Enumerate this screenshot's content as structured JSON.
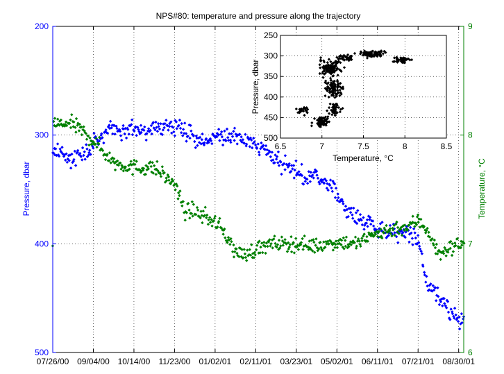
{
  "chart_data": [
    {
      "type": "scatter",
      "title": "NPS#80: temperature and pressure along the trajectory",
      "ylabel_left": "Pressure, dbar",
      "ylabel_right": "Temperature, °C",
      "left_axis": {
        "range": [
          500,
          200
        ],
        "reversed": true,
        "ticks": [
          "200",
          "300",
          "400",
          "500"
        ],
        "color": "#0000ff"
      },
      "right_axis": {
        "range": [
          6,
          9
        ],
        "ticks": [
          "6",
          "7",
          "8",
          "9"
        ],
        "color": "#008000"
      },
      "x_ticks": [
        "07/26/00",
        "09/04/00",
        "10/14/00",
        "11/23/00",
        "01/02/01",
        "02/11/01",
        "03/23/01",
        "05/02/01",
        "06/11/01",
        "07/21/01",
        "08/30/01"
      ],
      "x_range_days": [
        0,
        405
      ],
      "x_tick_days": [
        0,
        40,
        80,
        120,
        160,
        200,
        240,
        280,
        320,
        360,
        400
      ],
      "grid": "dotted",
      "series": [
        {
          "axis": "left",
          "color": "#0000ff",
          "keyframes": [
            [
              0,
              312
            ],
            [
              10,
              318
            ],
            [
              20,
              322
            ],
            [
              30,
              318
            ],
            [
              40,
              308
            ],
            [
              50,
              298
            ],
            [
              60,
              296
            ],
            [
              70,
              296
            ],
            [
              80,
              294
            ],
            [
              90,
              296
            ],
            [
              100,
              292
            ],
            [
              110,
              293
            ],
            [
              120,
              295
            ],
            [
              130,
              296
            ],
            [
              140,
              303
            ],
            [
              150,
              306
            ],
            [
              160,
              302
            ],
            [
              170,
              300
            ],
            [
              180,
              303
            ],
            [
              190,
              305
            ],
            [
              200,
              310
            ],
            [
              210,
              314
            ],
            [
              220,
              322
            ],
            [
              230,
              328
            ],
            [
              240,
              334
            ],
            [
              250,
              340
            ],
            [
              260,
              338
            ],
            [
              270,
              345
            ],
            [
              280,
              352
            ],
            [
              290,
              370
            ],
            [
              300,
              378
            ],
            [
              310,
              380
            ],
            [
              320,
              386
            ],
            [
              330,
              388
            ],
            [
              340,
              390
            ],
            [
              350,
              390
            ],
            [
              360,
              395
            ],
            [
              365,
              420
            ],
            [
              370,
              440
            ],
            [
              380,
              445
            ],
            [
              390,
              460
            ],
            [
              400,
              468
            ],
            [
              405,
              470
            ]
          ],
          "spread": 8
        },
        {
          "axis": "right",
          "color": "#008000",
          "keyframes": [
            [
              0,
              8.1
            ],
            [
              20,
              8.1
            ],
            [
              40,
              7.95
            ],
            [
              60,
              7.75
            ],
            [
              80,
              7.7
            ],
            [
              100,
              7.7
            ],
            [
              120,
              7.55
            ],
            [
              130,
              7.3
            ],
            [
              140,
              7.3
            ],
            [
              150,
              7.25
            ],
            [
              160,
              7.2
            ],
            [
              170,
              7.1
            ],
            [
              180,
              6.92
            ],
            [
              190,
              6.9
            ],
            [
              200,
              6.95
            ],
            [
              210,
              6.98
            ],
            [
              220,
              7.0
            ],
            [
              240,
              7.0
            ],
            [
              260,
              6.98
            ],
            [
              280,
              7.02
            ],
            [
              300,
              7.0
            ],
            [
              320,
              7.1
            ],
            [
              330,
              7.12
            ],
            [
              340,
              7.15
            ],
            [
              350,
              7.15
            ],
            [
              360,
              7.22
            ],
            [
              370,
              7.12
            ],
            [
              380,
              6.9
            ],
            [
              390,
              6.95
            ],
            [
              400,
              7.0
            ],
            [
              405,
              7.0
            ]
          ],
          "spread": 0.07
        }
      ]
    },
    {
      "type": "scatter",
      "xlabel": "Temperature, °C",
      "ylabel": "Pressure, dbar",
      "xlim": [
        6.5,
        8.5
      ],
      "ylim": [
        500,
        250
      ],
      "x_ticks": [
        "6.5",
        "7",
        "7.5",
        "8",
        "8.5"
      ],
      "y_ticks": [
        "250",
        "300",
        "350",
        "400",
        "450",
        "500"
      ],
      "grid": "dotted",
      "color": "#000000",
      "clusters": [
        {
          "t": 7.1,
          "p": 330,
          "dt": 0.13,
          "dp": 20,
          "n": 120
        },
        {
          "t": 7.15,
          "p": 380,
          "dt": 0.1,
          "dp": 20,
          "n": 100
        },
        {
          "t": 7.0,
          "p": 460,
          "dt": 0.1,
          "dp": 12,
          "n": 55
        },
        {
          "t": 6.75,
          "p": 432,
          "dt": 0.08,
          "dp": 10,
          "n": 25
        },
        {
          "t": 7.15,
          "p": 430,
          "dt": 0.07,
          "dp": 15,
          "n": 40
        },
        {
          "t": 7.6,
          "p": 295,
          "dt": 0.15,
          "dp": 7,
          "n": 90
        },
        {
          "t": 7.95,
          "p": 310,
          "dt": 0.12,
          "dp": 8,
          "n": 45
        },
        {
          "t": 7.3,
          "p": 305,
          "dt": 0.1,
          "dp": 8,
          "n": 35
        }
      ]
    }
  ]
}
